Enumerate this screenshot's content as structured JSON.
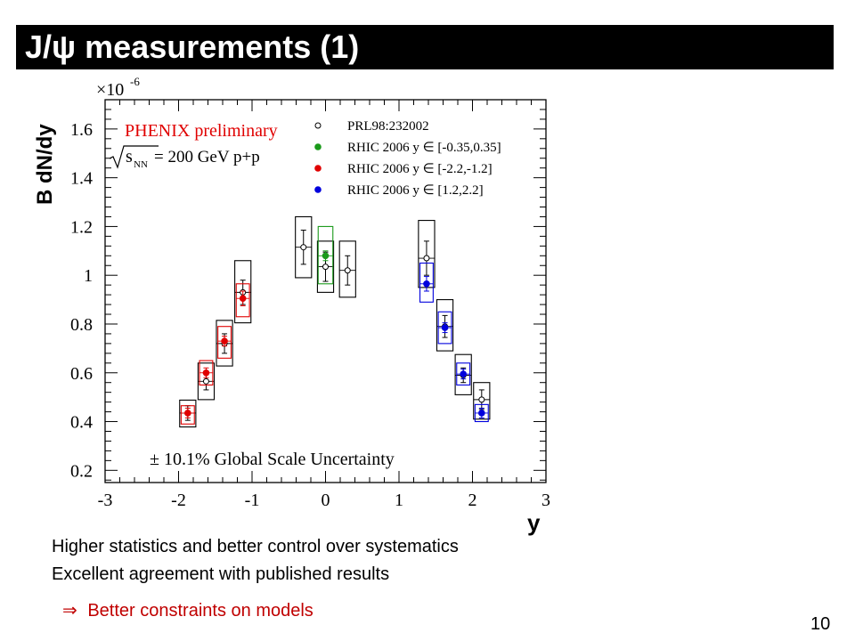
{
  "slide": {
    "title": "J/ψ measurements (1)",
    "bullets": [
      "Higher statistics and better control over systematics",
      "Excellent agreement with published results"
    ],
    "conclusion_arrow": "⇒",
    "conclusion": "Better constraints on models",
    "page_number": "10"
  },
  "chart_data": {
    "type": "scatter",
    "ylabel": "B dN/dy",
    "xlabel": "y",
    "y_multiplier": "×10",
    "y_multiplier_exp": "-6",
    "xlim": [
      -3,
      3
    ],
    "ylim": [
      0.15,
      1.72
    ],
    "x_ticks": [
      -3,
      -2,
      -1,
      0,
      1,
      2,
      3
    ],
    "x_tick_labels": [
      "-3",
      "-2",
      "-1",
      "0",
      "1",
      "2",
      "3"
    ],
    "y_ticks": [
      0.2,
      0.4,
      0.6,
      0.8,
      1.0,
      1.2,
      1.4,
      1.6
    ],
    "y_tick_labels": [
      "0.2",
      "0.4",
      "0.6",
      "0.8",
      "1",
      "1.2",
      "1.4",
      "1.6"
    ],
    "annotations": {
      "experiment": "PHENIX preliminary",
      "energy": "= 200 GeV p+p",
      "global_uncertainty": "± 10.1% Global Scale Uncertainty"
    },
    "legend_position": "top-right",
    "colors": {
      "prl": "#000000",
      "mid": "#1a9a1a",
      "south": "#e00000",
      "north": "#0000dd",
      "annotation": "#e00000"
    },
    "series": [
      {
        "name": "PRL98:232002",
        "marker": "open-circle",
        "color": "#000000",
        "points": [
          {
            "x": -1.875,
            "y": 0.435,
            "err": 0.03,
            "sys_lo": 0.378,
            "sys_hi": 0.488,
            "bw": 0.22
          },
          {
            "x": -1.625,
            "y": 0.565,
            "err": 0.035,
            "sys_lo": 0.49,
            "sys_hi": 0.64,
            "bw": 0.22
          },
          {
            "x": -1.375,
            "y": 0.72,
            "err": 0.04,
            "sys_lo": 0.628,
            "sys_hi": 0.815,
            "bw": 0.22
          },
          {
            "x": -1.125,
            "y": 0.93,
            "err": 0.05,
            "sys_lo": 0.805,
            "sys_hi": 1.06,
            "bw": 0.22
          },
          {
            "x": -0.3,
            "y": 1.115,
            "err": 0.07,
            "sys_lo": 0.99,
            "sys_hi": 1.24,
            "bw": 0.22
          },
          {
            "x": 0.0,
            "y": 1.035,
            "err": 0.06,
            "sys_lo": 0.93,
            "sys_hi": 1.14,
            "bw": 0.22
          },
          {
            "x": 0.3,
            "y": 1.02,
            "err": 0.06,
            "sys_lo": 0.91,
            "sys_hi": 1.14,
            "bw": 0.22
          },
          {
            "x": 1.375,
            "y": 1.07,
            "err": 0.07,
            "sys_lo": 0.95,
            "sys_hi": 1.225,
            "bw": 0.22
          },
          {
            "x": 1.625,
            "y": 0.79,
            "err": 0.045,
            "sys_lo": 0.69,
            "sys_hi": 0.9,
            "bw": 0.22
          },
          {
            "x": 1.875,
            "y": 0.59,
            "err": 0.03,
            "sys_lo": 0.51,
            "sys_hi": 0.675,
            "bw": 0.22
          },
          {
            "x": 2.125,
            "y": 0.49,
            "err": 0.04,
            "sys_lo": 0.41,
            "sys_hi": 0.56,
            "bw": 0.22
          }
        ]
      },
      {
        "name": "RHIC 2006 y ∈ [-0.35,0.35]",
        "marker": "filled-circle",
        "color": "#1a9a1a",
        "points": [
          {
            "x": 0.0,
            "y": 1.08,
            "err": 0.02,
            "sys_lo": 0.965,
            "sys_hi": 1.2,
            "bw": 0.2
          }
        ]
      },
      {
        "name": "RHIC 2006 y ∈ [-2.2,-1.2]",
        "marker": "filled-circle",
        "color": "#e00000",
        "points": [
          {
            "x": -1.875,
            "y": 0.435,
            "err": 0.02,
            "sys_lo": 0.39,
            "sys_hi": 0.465,
            "bw": 0.18
          },
          {
            "x": -1.625,
            "y": 0.6,
            "err": 0.02,
            "sys_lo": 0.55,
            "sys_hi": 0.65,
            "bw": 0.18
          },
          {
            "x": -1.375,
            "y": 0.73,
            "err": 0.02,
            "sys_lo": 0.66,
            "sys_hi": 0.79,
            "bw": 0.18
          },
          {
            "x": -1.125,
            "y": 0.905,
            "err": 0.03,
            "sys_lo": 0.83,
            "sys_hi": 0.965,
            "bw": 0.18
          }
        ]
      },
      {
        "name": "RHIC 2006 y ∈ [1.2,2.2]",
        "marker": "filled-circle",
        "color": "#0000dd",
        "points": [
          {
            "x": 1.375,
            "y": 0.965,
            "err": 0.03,
            "sys_lo": 0.89,
            "sys_hi": 1.05,
            "bw": 0.18
          },
          {
            "x": 1.625,
            "y": 0.785,
            "err": 0.02,
            "sys_lo": 0.72,
            "sys_hi": 0.85,
            "bw": 0.18
          },
          {
            "x": 1.875,
            "y": 0.595,
            "err": 0.02,
            "sys_lo": 0.55,
            "sys_hi": 0.64,
            "bw": 0.18
          },
          {
            "x": 2.125,
            "y": 0.435,
            "err": 0.02,
            "sys_lo": 0.4,
            "sys_hi": 0.47,
            "bw": 0.18
          }
        ]
      }
    ]
  }
}
